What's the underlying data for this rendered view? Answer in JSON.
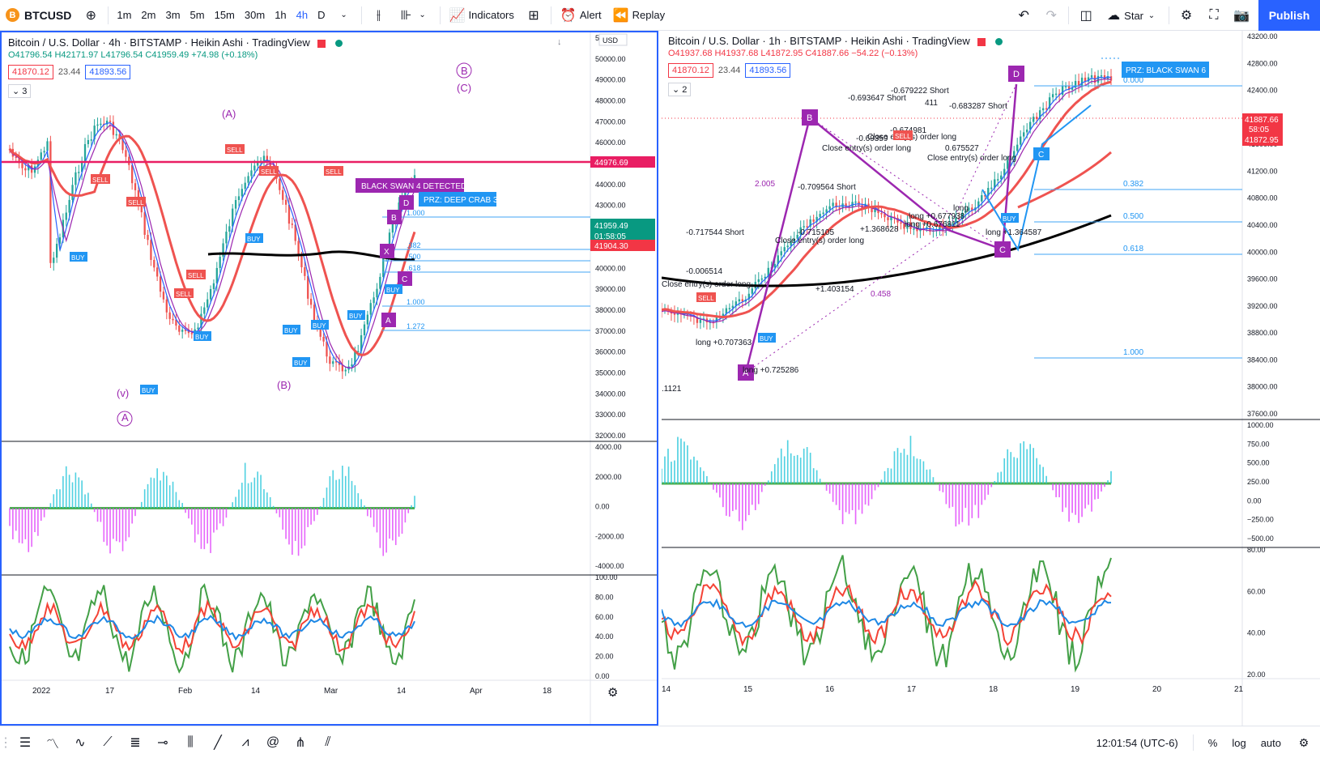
{
  "toolbar": {
    "symbol": "BTCUSD",
    "symbol_icon": "B",
    "intervals": [
      "1m",
      "2m",
      "3m",
      "5m",
      "15m",
      "30m",
      "1h",
      "4h",
      "D"
    ],
    "active_interval": "4h",
    "indicators_label": "Indicators",
    "alert_label": "Alert",
    "replay_label": "Replay",
    "star_label": "Star",
    "publish_label": "Publish"
  },
  "left_chart": {
    "title": "Bitcoin / U.S. Dollar · 4h · BITSTAMP · Heikin Ashi · TradingView",
    "ohlc": "O41796.54 H42171.97 L41796.54 C41959.49 +74.98 (+0.18%)",
    "bid": "41870.12",
    "spread": "23.44",
    "ask": "41893.56",
    "collapse": "3",
    "currency_label": "USD",
    "price_axis": [
      "51000.00",
      "50000.00",
      "49000.00",
      "48000.00",
      "47000.00",
      "46000.00",
      "45000.00",
      "44000.00",
      "43000.00",
      "42000.00",
      "41000.00",
      "40000.00",
      "39000.00",
      "38000.00",
      "37000.00",
      "36000.00",
      "35000.00",
      "34000.00",
      "33000.00",
      "32000.00"
    ],
    "red_line_price": "44976.69",
    "last_price": "41959.49",
    "countdown": "01:58:05",
    "lower_price": "41904.30",
    "osc_axis": [
      "4000.00",
      "2000.00",
      "0.00",
      "-2000.00",
      "-4000.00"
    ],
    "rsi_axis": [
      "100.00",
      "80.00",
      "60.00",
      "40.00",
      "20.00",
      "0.00"
    ],
    "time_axis": [
      "2022",
      "17",
      "Feb",
      "14",
      "Mar",
      "14",
      "Apr",
      "18"
    ],
    "pattern_label": "BLACK SWAN 4 DETECTED",
    "prz_label": "PRZ: DEEP CRAB 3",
    "fib_labels": [
      "1.000",
      ".382",
      ".500",
      ".618",
      "1.000",
      "1.272"
    ],
    "wave_labels": [
      "(A)",
      "(B)",
      "(C)",
      "B",
      "A",
      "(v)"
    ],
    "xabcd": [
      "D",
      "B",
      "C",
      "A",
      "X"
    ],
    "buy": "BUY",
    "sell": "SELL"
  },
  "right_chart": {
    "title": "Bitcoin / U.S. Dollar · 1h · BITSTAMP · Heikin Ashi · TradingView",
    "ohlc": "O41937.68 H41937.68 L41872.95 C41887.66 −54.22 (−0.13%)",
    "bid": "41870.12",
    "spread": "23.44",
    "ask": "41893.56",
    "collapse": "2",
    "price_axis": [
      "43200.00",
      "42800.00",
      "42400.00",
      "42000.00",
      "41600.00",
      "41200.00",
      "40800.00",
      "40400.00",
      "40000.00",
      "39600.00",
      "39200.00",
      "38800.00",
      "38400.00",
      "38000.00",
      "37600.00"
    ],
    "last_price": "41887.66",
    "countdown": "58:05",
    "lower_price": "41872.95",
    "osc_axis": [
      "1000.00",
      "750.00",
      "500.00",
      "250.00",
      "0.00",
      "−250.00",
      "−500.00"
    ],
    "rsi_axis": [
      "80.00",
      "60.00",
      "40.00",
      "20.00"
    ],
    "time_axis": [
      "14",
      "15",
      "16",
      "17",
      "18",
      "19",
      "20",
      "21"
    ],
    "prz_label": "PRZ: BLACK SWAN 6",
    "fib_labels": [
      "0.000",
      "0.382",
      "0.500",
      "0.618",
      "1.000"
    ],
    "ratios": [
      "2.005",
      "0.458"
    ],
    "xabcd": [
      "D",
      "B",
      "C",
      "A"
    ],
    "annotations": [
      "-0.717544 Short",
      "-0.006514",
      "Close entry(s) order long",
      "-0.693647 Short",
      "-0.679222 Short",
      "-0.683287 Short",
      "-0.69359",
      "-0.674981",
      "Close entry(s) order long",
      "Close entry(s) order long",
      "-0.709564 Short",
      "-0.715105",
      "Close entry(s) order long",
      "0.675527",
      "Close entry(s) order long",
      "long +0.707363",
      "long +0.725286",
      "+1.368628",
      "long +0.676811",
      "long +0.677938",
      "long +1.364587",
      "+1.403154",
      ".1121",
      "411",
      "long"
    ],
    "buy": "BUY",
    "sell": "SELL"
  },
  "status": {
    "time": "12:01:54 (UTC-6)",
    "percent": "%",
    "log": "log",
    "auto": "auto"
  },
  "icons": {
    "add": "add-symbol-icon",
    "bars": "bar-style-icon",
    "layout": "layout-icon",
    "alert": "alarm-clock-icon",
    "replay": "rewind-icon",
    "undo": "undo-icon",
    "redo": "redo-icon",
    "panel": "split-panel-icon",
    "cloud": "cloud-icon",
    "settings": "gear-icon",
    "fullscreen": "fullscreen-icon",
    "camera": "camera-icon"
  }
}
